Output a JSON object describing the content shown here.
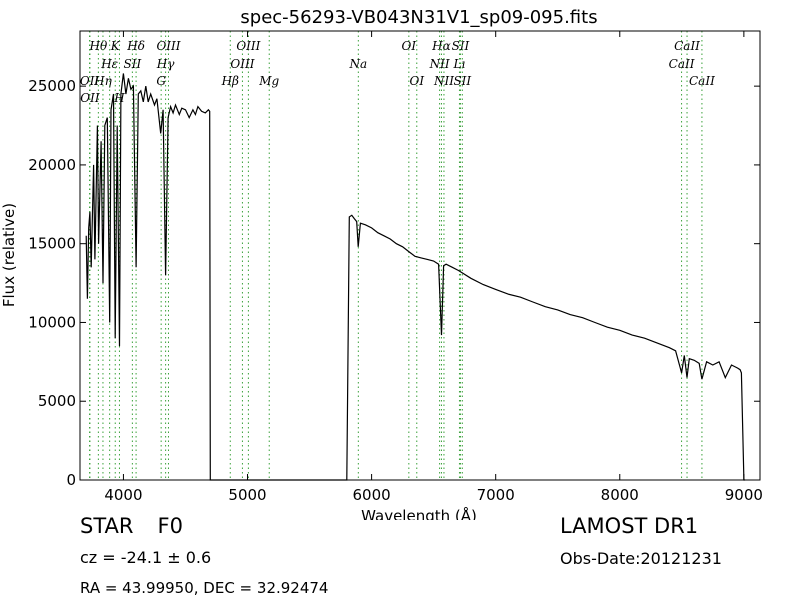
{
  "chart_data": {
    "type": "line",
    "title": "spec-56293-VB043N31V1_sp09-095.fits",
    "xlabel": "Wavelength (Å)",
    "ylabel": "Flux (relative)",
    "xlim": [
      3650,
      9130
    ],
    "ylim": [
      0,
      28500
    ],
    "xticks": [
      4000,
      5000,
      6000,
      7000,
      8000,
      9000
    ],
    "yticks": [
      0,
      5000,
      10000,
      15000,
      20000,
      25000
    ],
    "line_color": "#000000",
    "marker_color": "#3aa13a",
    "spectrum": [
      [
        3700,
        15500
      ],
      [
        3710,
        11500
      ],
      [
        3720,
        16000
      ],
      [
        3730,
        17000
      ],
      [
        3740,
        13500
      ],
      [
        3760,
        20000
      ],
      [
        3770,
        14000
      ],
      [
        3790,
        22500
      ],
      [
        3800,
        15000
      ],
      [
        3820,
        21500
      ],
      [
        3835,
        12500
      ],
      [
        3850,
        22500
      ],
      [
        3870,
        23000
      ],
      [
        3889,
        10000
      ],
      [
        3900,
        23500
      ],
      [
        3920,
        24500
      ],
      [
        3934,
        9000
      ],
      [
        3950,
        22500
      ],
      [
        3968,
        8500
      ],
      [
        3980,
        24500
      ],
      [
        4000,
        25800
      ],
      [
        4020,
        24500
      ],
      [
        4040,
        25500
      ],
      [
        4060,
        24800
      ],
      [
        4080,
        25000
      ],
      [
        4102,
        13500
      ],
      [
        4120,
        24500
      ],
      [
        4140,
        24700
      ],
      [
        4160,
        24000
      ],
      [
        4180,
        25000
      ],
      [
        4200,
        24000
      ],
      [
        4220,
        24500
      ],
      [
        4250,
        23800
      ],
      [
        4270,
        24200
      ],
      [
        4300,
        22000
      ],
      [
        4320,
        23500
      ],
      [
        4340,
        13000
      ],
      [
        4360,
        23000
      ],
      [
        4380,
        23700
      ],
      [
        4400,
        23300
      ],
      [
        4420,
        23800
      ],
      [
        4450,
        23200
      ],
      [
        4470,
        23600
      ],
      [
        4500,
        23500
      ],
      [
        4530,
        23000
      ],
      [
        4560,
        23500
      ],
      [
        4580,
        23200
      ],
      [
        4600,
        23700
      ],
      [
        4630,
        23400
      ],
      [
        4660,
        23300
      ],
      [
        4685,
        23500
      ],
      [
        4695,
        23400
      ],
      [
        4700,
        0
      ],
      [
        5800,
        0
      ],
      [
        5820,
        16700
      ],
      [
        5840,
        16800
      ],
      [
        5860,
        16600
      ],
      [
        5880,
        16400
      ],
      [
        5892,
        14800
      ],
      [
        5910,
        16300
      ],
      [
        5950,
        16200
      ],
      [
        6000,
        16000
      ],
      [
        6050,
        15700
      ],
      [
        6100,
        15500
      ],
      [
        6150,
        15300
      ],
      [
        6200,
        15000
      ],
      [
        6250,
        14800
      ],
      [
        6300,
        14500
      ],
      [
        6350,
        14200
      ],
      [
        6400,
        14100
      ],
      [
        6450,
        14000
      ],
      [
        6500,
        13900
      ],
      [
        6540,
        13700
      ],
      [
        6563,
        9200
      ],
      [
        6580,
        13600
      ],
      [
        6600,
        13700
      ],
      [
        6650,
        13500
      ],
      [
        6700,
        13300
      ],
      [
        6800,
        12800
      ],
      [
        6900,
        12400
      ],
      [
        7000,
        12100
      ],
      [
        7100,
        11800
      ],
      [
        7200,
        11600
      ],
      [
        7300,
        11300
      ],
      [
        7400,
        11000
      ],
      [
        7500,
        10800
      ],
      [
        7600,
        10500
      ],
      [
        7700,
        10300
      ],
      [
        7800,
        10000
      ],
      [
        7900,
        9700
      ],
      [
        8000,
        9500
      ],
      [
        8100,
        9200
      ],
      [
        8200,
        9000
      ],
      [
        8300,
        8700
      ],
      [
        8400,
        8400
      ],
      [
        8450,
        8200
      ],
      [
        8498,
        6800
      ],
      [
        8520,
        7900
      ],
      [
        8542,
        6500
      ],
      [
        8560,
        7700
      ],
      [
        8600,
        7600
      ],
      [
        8640,
        7400
      ],
      [
        8662,
        6400
      ],
      [
        8700,
        7500
      ],
      [
        8750,
        7300
      ],
      [
        8800,
        7500
      ],
      [
        8850,
        6500
      ],
      [
        8900,
        7300
      ],
      [
        8950,
        7100
      ],
      [
        8970,
        7000
      ],
      [
        8980,
        6800
      ],
      [
        9000,
        0
      ],
      [
        9010,
        0
      ]
    ],
    "line_markers": [
      {
        "label": "OII",
        "wavelength": 3727,
        "row": 2
      },
      {
        "label": "Hθ",
        "wavelength": 3798,
        "row": 0
      },
      {
        "label": "OII",
        "wavelength": 3730,
        "row": 3
      },
      {
        "label": "Hη",
        "wavelength": 3835,
        "row": 2
      },
      {
        "label": "Hε",
        "wavelength": 3889,
        "row": 1
      },
      {
        "label": "H",
        "wavelength": 3968,
        "row": 3
      },
      {
        "label": "K",
        "wavelength": 3934,
        "row": 0
      },
      {
        "label": "SII",
        "wavelength": 4072,
        "row": 1
      },
      {
        "label": "Hδ",
        "wavelength": 4102,
        "row": 0
      },
      {
        "label": "OIII",
        "wavelength": 4363,
        "row": 0
      },
      {
        "label": "Hγ",
        "wavelength": 4340,
        "row": 1
      },
      {
        "label": "G",
        "wavelength": 4304,
        "row": 2
      },
      {
        "label": "OIII",
        "wavelength": 5007,
        "row": 0
      },
      {
        "label": "OIII",
        "wavelength": 4959,
        "row": 1
      },
      {
        "label": "Hβ",
        "wavelength": 4861,
        "row": 2
      },
      {
        "label": "Mg",
        "wavelength": 5175,
        "row": 2
      },
      {
        "label": "Na",
        "wavelength": 5893,
        "row": 1
      },
      {
        "label": "OI",
        "wavelength": 6300,
        "row": 0
      },
      {
        "label": "OI",
        "wavelength": 6364,
        "row": 2
      },
      {
        "label": "Hα",
        "wavelength": 6563,
        "row": 0
      },
      {
        "label": "NII",
        "wavelength": 6548,
        "row": 1
      },
      {
        "label": "NII",
        "wavelength": 6583,
        "row": 2
      },
      {
        "label": "SII",
        "wavelength": 6716,
        "row": 0
      },
      {
        "label": "Lı",
        "wavelength": 6708,
        "row": 1
      },
      {
        "label": "SII",
        "wavelength": 6731,
        "row": 2
      },
      {
        "label": "CaII",
        "wavelength": 8542,
        "row": 0
      },
      {
        "label": "CaII",
        "wavelength": 8498,
        "row": 1
      },
      {
        "label": "CaII",
        "wavelength": 8662,
        "row": 2
      }
    ],
    "grid": false,
    "legend": false
  },
  "info": {
    "object_type": "STAR",
    "spectral_class": "F0",
    "survey": "LAMOST DR1",
    "redshift": "cz = -24.1 ± 0.6",
    "obs_date": "Obs-Date:20121231",
    "coordinates": "RA = 43.99950, DEC = 32.92474"
  }
}
